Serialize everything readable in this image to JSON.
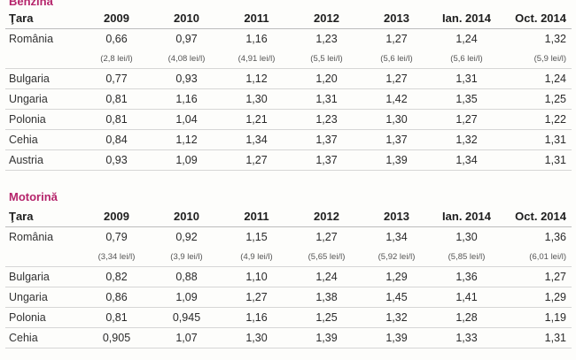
{
  "benzina": {
    "title": "Benzină",
    "headers": [
      "Ţara",
      "2009",
      "2010",
      "2011",
      "2012",
      "2013",
      "Ian. 2014",
      "Oct. 2014"
    ],
    "rows": [
      [
        "România",
        "0,66",
        "0,97",
        "1,16",
        "1,23",
        "1,27",
        "1,24",
        "1,32"
      ],
      [
        "",
        "(2,8 lei/l)",
        "(4,08 lei/l)",
        "(4,91 lei/l)",
        "(5,5 lei/l)",
        "(5,6 lei/l)",
        "(5,6 lei/l)",
        "(5,9 lei/l)"
      ],
      [
        "Bulgaria",
        "0,77",
        "0,93",
        "1,12",
        "1,20",
        "1,27",
        "1,31",
        "1,24"
      ],
      [
        "Ungaria",
        "0,81",
        "1,16",
        "1,30",
        "1,31",
        "1,42",
        "1,35",
        "1,25"
      ],
      [
        "Polonia",
        "0,81",
        "1,04",
        "1,21",
        "1,23",
        "1,30",
        "1,27",
        "1,22"
      ],
      [
        "Cehia",
        "0,84",
        "1,12",
        "1,34",
        "1,37",
        "1,37",
        "1,32",
        "1,31"
      ],
      [
        "Austria",
        "0,93",
        "1,09",
        "1,27",
        "1,37",
        "1,39",
        "1,34",
        "1,31"
      ]
    ]
  },
  "motorina": {
    "title": "Motorină",
    "headers": [
      "Ţara",
      "2009",
      "2010",
      "2011",
      "2012",
      "2013",
      "Ian. 2014",
      "Oct. 2014"
    ],
    "rows": [
      [
        "România",
        "0,79",
        "0,92",
        "1,15",
        "1,27",
        "1,34",
        "1,30",
        "1,36"
      ],
      [
        "",
        "(3,34 lei/l)",
        "(3,9 lei/l)",
        "(4,9 lei/l)",
        "(5,65 lei/l)",
        "(5,92 lei/l)",
        "(5,85 lei/l)",
        "(6,01 lei/l)"
      ],
      [
        "Bulgaria",
        "0,82",
        "0,88",
        "1,10",
        "1,24",
        "1,29",
        "1,36",
        "1,27"
      ],
      [
        "Ungaria",
        "0,86",
        "1,09",
        "1,27",
        "1,38",
        "1,45",
        "1,41",
        "1,29"
      ],
      [
        "Polonia",
        "0,81",
        "0,945",
        "1,16",
        "1,25",
        "1,32",
        "1,28",
        "1,19"
      ],
      [
        "Cehia",
        "0,905",
        "1,07",
        "1,30",
        "1,39",
        "1,39",
        "1,33",
        "1,31"
      ]
    ]
  },
  "colors": {
    "section_title": "#b5246b",
    "text": "#2a2a2a",
    "rule": "#d6d6d6"
  }
}
